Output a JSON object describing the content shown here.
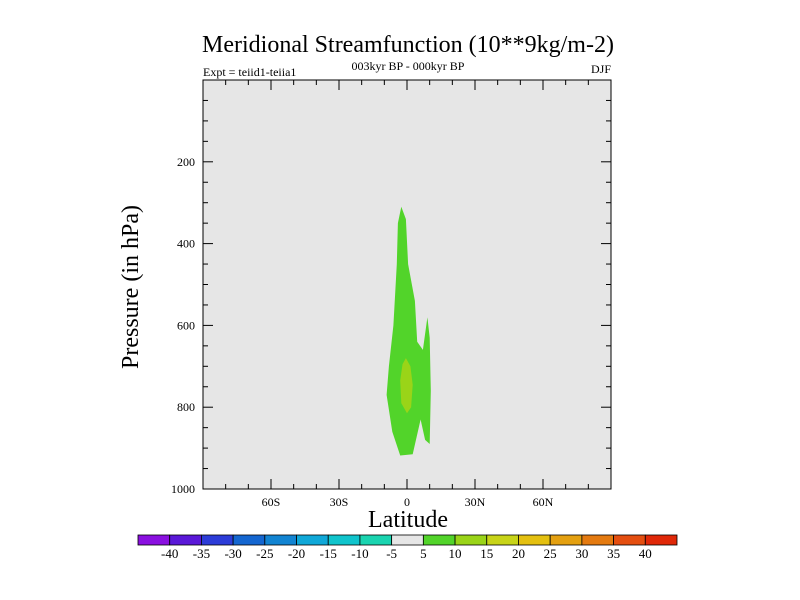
{
  "chart_data": {
    "type": "contour",
    "title": "Meridional Streamfunction (10**9kg/m-2)",
    "subtitle_left": "Expt = teiid1-teiia1",
    "subtitle_center": "003kyr BP - 000kyr BP",
    "subtitle_right": "DJF",
    "xlabel": "Latitude",
    "ylabel": "Pressure (in hPa)",
    "xlim": [
      -90,
      90
    ],
    "ylim": [
      1000,
      0
    ],
    "y_reversed": true,
    "grid": false,
    "x_ticks": [
      {
        "value": -60,
        "label": "60S"
      },
      {
        "value": -30,
        "label": "30S"
      },
      {
        "value": 0,
        "label": "0"
      },
      {
        "value": 30,
        "label": "30N"
      },
      {
        "value": 60,
        "label": "60N"
      }
    ],
    "y_ticks": [
      {
        "value": 200,
        "label": "200"
      },
      {
        "value": 400,
        "label": "400"
      },
      {
        "value": 600,
        "label": "600"
      },
      {
        "value": 800,
        "label": "800"
      },
      {
        "value": 1000,
        "label": "1000"
      }
    ],
    "levels": [
      -40,
      -35,
      -30,
      -25,
      -20,
      -15,
      -10,
      -5,
      5,
      10,
      15,
      20,
      25,
      30,
      35,
      40
    ],
    "colorbar_colors": [
      "#8a10e0",
      "#5a18d8",
      "#2c3cd8",
      "#1466d0",
      "#1284d2",
      "#10a8d8",
      "#10c4cc",
      "#1ad4b0",
      "#e6e6e6",
      "#52d42a",
      "#9ad418",
      "#c8d418",
      "#e4c010",
      "#e4a010",
      "#e47a10",
      "#e44e10",
      "#e02808"
    ],
    "background_color": "#e6e6e6",
    "regions": [
      {
        "level_range": "5 to 10",
        "color": "#52d42a",
        "points": [
          [
            -2.5,
            310
          ],
          [
            -0.5,
            340
          ],
          [
            0.5,
            450
          ],
          [
            3.5,
            540
          ],
          [
            4.5,
            640
          ],
          [
            7,
            660
          ],
          [
            9,
            580
          ],
          [
            10,
            630
          ],
          [
            10.5,
            760
          ],
          [
            10,
            890
          ],
          [
            8,
            880
          ],
          [
            6,
            830
          ],
          [
            2.5,
            915
          ],
          [
            -3,
            918
          ],
          [
            -6.5,
            860
          ],
          [
            -9,
            770
          ],
          [
            -8,
            700
          ],
          [
            -6,
            600
          ],
          [
            -4.5,
            450
          ],
          [
            -4,
            350
          ]
        ]
      },
      {
        "level_range": "10 to 15",
        "color": "#9ad418",
        "points": [
          [
            -0.5,
            680
          ],
          [
            1.5,
            700
          ],
          [
            2.5,
            745
          ],
          [
            1.8,
            800
          ],
          [
            0,
            815
          ],
          [
            -2.5,
            790
          ],
          [
            -3,
            735
          ],
          [
            -2,
            695
          ]
        ]
      }
    ]
  }
}
